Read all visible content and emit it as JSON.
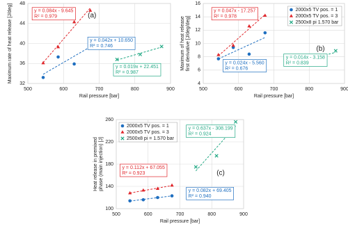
{
  "chart_data": [
    {
      "type": "scatter",
      "annotation": "(a)",
      "xlabel": "Rail pressure [bar]",
      "ylabel": "Maximum rate of heat release [J/deg]",
      "xlim": [
        500,
        900
      ],
      "xticks": [
        500,
        600,
        700,
        800,
        900
      ],
      "ylim": [
        32,
        48
      ],
      "yticks": [
        32,
        36,
        40,
        44,
        48
      ],
      "grid": true,
      "series": [
        {
          "name": "2000x5 TV pos. = 1",
          "color": "#1f6fc0",
          "marker": "circle",
          "x": [
            543,
            585,
            630,
            675
          ],
          "values": [
            33.2,
            37.3,
            35.9,
            39.8
          ],
          "fit": [
            "y = 0.042x + 10.650",
            "R² = 0.746"
          ]
        },
        {
          "name": "2000x5 TV pos. = 3",
          "color": "#e0262b",
          "marker": "triangle",
          "x": [
            543,
            585,
            630,
            675
          ],
          "values": [
            36.1,
            39.3,
            44.3,
            46.6
          ],
          "fit": [
            "y = 0.084x - 9.645",
            "R² = 0.979"
          ]
        },
        {
          "name": "2500x8 pi = 1.570 bar",
          "color": "#22a884",
          "marker": "cross",
          "x": [
            750,
            815,
            875
          ],
          "values": [
            36.8,
            37.8,
            39.4
          ],
          "fit": [
            "y = 0.019x + 22.451",
            "R² = 0.987"
          ]
        }
      ]
    },
    {
      "type": "scatter",
      "annotation": "(b)",
      "legend": "upper right",
      "xlabel": "Rail pressure [bar]",
      "ylabel": "Maximum of heat release first derivative [J/deg/deg]",
      "xlim": [
        500,
        900
      ],
      "xticks": [
        500,
        600,
        700,
        800,
        900
      ],
      "ylim": [
        4,
        16
      ],
      "yticks": [
        4,
        6,
        8,
        10,
        12,
        14,
        16
      ],
      "grid": true,
      "series": [
        {
          "name": "2000x5 TV pos. = 1",
          "color": "#1f6fc0",
          "marker": "circle",
          "x": [
            543,
            585,
            630,
            675
          ],
          "values": [
            7.7,
            9.4,
            8.4,
            11.6
          ],
          "fit": [
            "y = 0.024x - 5.560",
            "R² = 0.676"
          ]
        },
        {
          "name": "2000x5 TV pos. = 3",
          "color": "#e0262b",
          "marker": "triangle",
          "x": [
            543,
            585,
            630,
            675
          ],
          "values": [
            8.3,
            9.7,
            12.6,
            14.2
          ],
          "fit": [
            "y = 0.047x - 17.257",
            "R² = 0.978"
          ]
        },
        {
          "name": "2500x8 pi 1.570 bar",
          "color": "#22a884",
          "marker": "cross",
          "x": [
            750,
            815,
            875
          ],
          "values": [
            7.2,
            7.4,
            8.9
          ],
          "fit": [
            "y = 0.014x - 3.158",
            "R² = 0.839"
          ]
        }
      ]
    },
    {
      "type": "scatter",
      "annotation": "(c)",
      "legend": "upper left",
      "xlabel": "Rail pressure [bar]",
      "ylabel": "Heat release in premixed phase (main injection) [J]",
      "xlim": [
        500,
        900
      ],
      "xticks": [
        500,
        600,
        700,
        800,
        900
      ],
      "ylim": [
        100,
        260
      ],
      "yticks": [
        100,
        140,
        180,
        220,
        260
      ],
      "grid": true,
      "series": [
        {
          "name": "2000x5 TV pos. = 1",
          "color": "#1f6fc0",
          "marker": "circle",
          "x": [
            543,
            585,
            630,
            675
          ],
          "values": [
            114,
            116,
            120,
            123
          ],
          "fit": [
            "y = 0.082x + 69.405",
            "R² = 0.940"
          ]
        },
        {
          "name": "2000x5 TV pos. = 3",
          "color": "#e0262b",
          "marker": "triangle",
          "x": [
            543,
            585,
            630,
            675
          ],
          "values": [
            128,
            133,
            136,
            142
          ],
          "fit": [
            "y = 0.112x + 67.055",
            "R² = 0.923"
          ]
        },
        {
          "name": "2500x8 pi = 1.570 bar",
          "color": "#22a884",
          "marker": "cross",
          "x": [
            750,
            815,
            875
          ],
          "values": [
            175,
            195,
            256
          ],
          "fit": [
            "y = 0.637x - 308.199",
            "R² = 0.924"
          ]
        }
      ]
    }
  ]
}
